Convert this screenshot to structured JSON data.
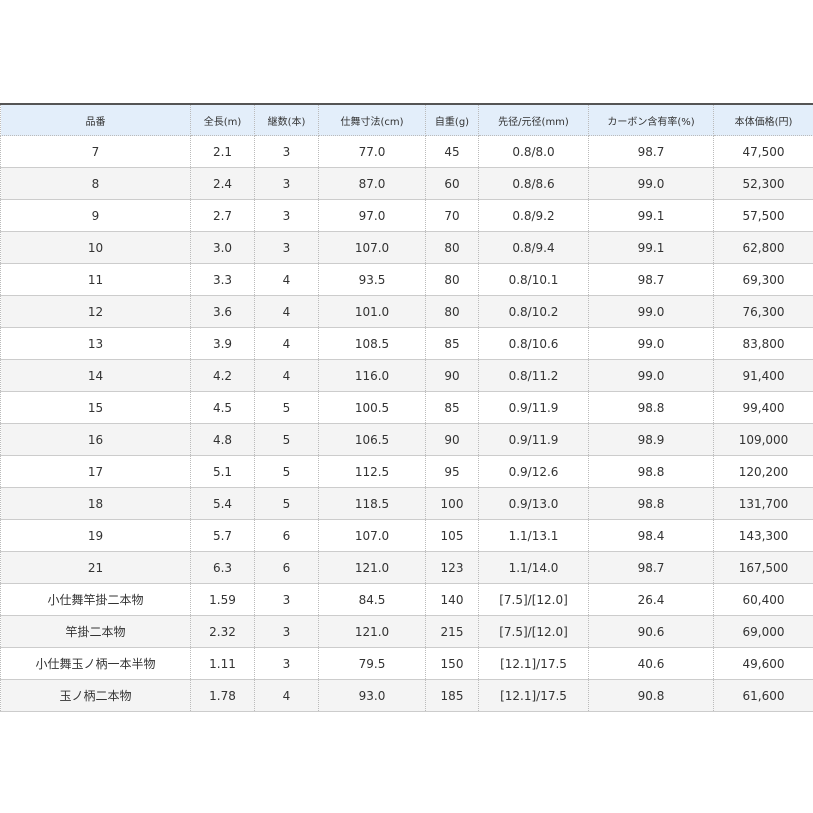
{
  "headers": [
    "品番",
    "全長(m)",
    "継数(本)",
    "仕舞寸法(cm)",
    "自重(g)",
    "先径/元径(mm)",
    "カーボン含有率(%)",
    "本体価格(円)"
  ],
  "rows": [
    [
      "7",
      "2.1",
      "3",
      "77.0",
      "45",
      "0.8/8.0",
      "98.7",
      "47,500"
    ],
    [
      "8",
      "2.4",
      "3",
      "87.0",
      "60",
      "0.8/8.6",
      "99.0",
      "52,300"
    ],
    [
      "9",
      "2.7",
      "3",
      "97.0",
      "70",
      "0.8/9.2",
      "99.1",
      "57,500"
    ],
    [
      "10",
      "3.0",
      "3",
      "107.0",
      "80",
      "0.8/9.4",
      "99.1",
      "62,800"
    ],
    [
      "11",
      "3.3",
      "4",
      "93.5",
      "80",
      "0.8/10.1",
      "98.7",
      "69,300"
    ],
    [
      "12",
      "3.6",
      "4",
      "101.0",
      "80",
      "0.8/10.2",
      "99.0",
      "76,300"
    ],
    [
      "13",
      "3.9",
      "4",
      "108.5",
      "85",
      "0.8/10.6",
      "99.0",
      "83,800"
    ],
    [
      "14",
      "4.2",
      "4",
      "116.0",
      "90",
      "0.8/11.2",
      "99.0",
      "91,400"
    ],
    [
      "15",
      "4.5",
      "5",
      "100.5",
      "85",
      "0.9/11.9",
      "98.8",
      "99,400"
    ],
    [
      "16",
      "4.8",
      "5",
      "106.5",
      "90",
      "0.9/11.9",
      "98.9",
      "109,000"
    ],
    [
      "17",
      "5.1",
      "5",
      "112.5",
      "95",
      "0.9/12.6",
      "98.8",
      "120,200"
    ],
    [
      "18",
      "5.4",
      "5",
      "118.5",
      "100",
      "0.9/13.0",
      "98.8",
      "131,700"
    ],
    [
      "19",
      "5.7",
      "6",
      "107.0",
      "105",
      "1.1/13.1",
      "98.4",
      "143,300"
    ],
    [
      "21",
      "6.3",
      "6",
      "121.0",
      "123",
      "1.1/14.0",
      "98.7",
      "167,500"
    ],
    [
      "小仕舞竿掛二本物",
      "1.59",
      "3",
      "84.5",
      "140",
      "[7.5]/[12.0]",
      "26.4",
      "60,400"
    ],
    [
      "竿掛二本物",
      "2.32",
      "3",
      "121.0",
      "215",
      "[7.5]/[12.0]",
      "90.6",
      "69,000"
    ],
    [
      "小仕舞玉ノ柄一本半物",
      "1.11",
      "3",
      "79.5",
      "150",
      "[12.1]/17.5",
      "40.6",
      "49,600"
    ],
    [
      "玉ノ柄二本物",
      "1.78",
      "4",
      "93.0",
      "185",
      "[12.1]/17.5",
      "90.8",
      "61,600"
    ]
  ]
}
